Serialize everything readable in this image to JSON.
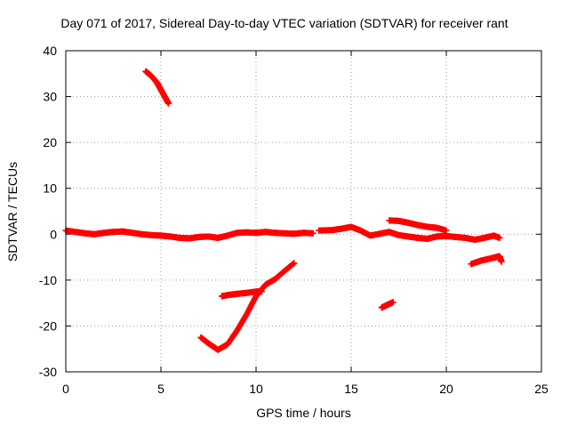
{
  "chart_data": {
    "type": "scatter",
    "title": "Day 071 of 2017, Sidereal Day-to-day VTEC variation (SDTVAR) for receiver rant",
    "xlabel": "GPS time / hours",
    "ylabel": "SDTVAR / TECUs",
    "xlim": [
      0,
      25
    ],
    "ylim": [
      -30,
      40
    ],
    "xticks": [
      0,
      5,
      10,
      15,
      20,
      25
    ],
    "yticks": [
      -30,
      -20,
      -10,
      0,
      10,
      20,
      30,
      40
    ],
    "grid": true,
    "marker": "+",
    "color": "#ff0000",
    "series": [
      {
        "name": "main-near-zero",
        "points": [
          [
            0,
            0.8
          ],
          [
            0.5,
            0.5
          ],
          [
            1,
            0.2
          ],
          [
            1.5,
            0
          ],
          [
            2,
            0.3
          ],
          [
            2.5,
            0.5
          ],
          [
            3,
            0.6
          ],
          [
            3.5,
            0.3
          ],
          [
            4,
            0
          ],
          [
            4.5,
            -0.2
          ],
          [
            5,
            -0.3
          ],
          [
            5.5,
            -0.5
          ],
          [
            6,
            -0.8
          ],
          [
            6.5,
            -0.9
          ],
          [
            7,
            -0.6
          ],
          [
            7.5,
            -0.5
          ],
          [
            8,
            -0.8
          ],
          [
            8.5,
            -0.3
          ],
          [
            9,
            0.3
          ],
          [
            9.5,
            0.4
          ],
          [
            10,
            0.3
          ],
          [
            10.5,
            0.5
          ],
          [
            11,
            0.3
          ],
          [
            11.5,
            0.2
          ],
          [
            12,
            0.1
          ],
          [
            12.5,
            0.3
          ],
          [
            13,
            0.2
          ]
        ]
      },
      {
        "name": "mid-segment",
        "points": [
          [
            13.3,
            0.8
          ],
          [
            14,
            0.9
          ],
          [
            14.5,
            1.2
          ],
          [
            15,
            1.6
          ],
          [
            15.5,
            0.8
          ],
          [
            16,
            -0.3
          ],
          [
            16.5,
            0.1
          ],
          [
            17,
            0.5
          ],
          [
            17.5,
            -0.2
          ],
          [
            18,
            -0.5
          ],
          [
            18.5,
            -0.8
          ],
          [
            19,
            -1.0
          ],
          [
            19.5,
            -0.5
          ],
          [
            20,
            -0.4
          ],
          [
            20.5,
            -0.6
          ],
          [
            21,
            -0.8
          ],
          [
            21.5,
            -1.2
          ],
          [
            22,
            -0.8
          ],
          [
            22.5,
            -0.3
          ],
          [
            22.8,
            -0.8
          ]
        ]
      },
      {
        "name": "upper-arc",
        "points": [
          [
            17,
            3
          ],
          [
            17.5,
            2.9
          ],
          [
            18,
            2.5
          ],
          [
            18.5,
            2.0
          ],
          [
            19,
            1.6
          ],
          [
            19.5,
            1.4
          ],
          [
            20,
            0.8
          ]
        ]
      },
      {
        "name": "descending-start",
        "points": [
          [
            4.2,
            35.5
          ],
          [
            4.5,
            34.5
          ],
          [
            4.8,
            33
          ],
          [
            5.0,
            31.5
          ],
          [
            5.2,
            30
          ],
          [
            5.4,
            28.5
          ]
        ]
      },
      {
        "name": "rising-track",
        "points": [
          [
            7.1,
            -22.5
          ],
          [
            7.5,
            -23.8
          ],
          [
            8,
            -25.2
          ],
          [
            8.5,
            -24
          ],
          [
            9,
            -21
          ],
          [
            9.5,
            -17.5
          ],
          [
            10,
            -13.5
          ],
          [
            10.5,
            -11
          ],
          [
            11,
            -9.8
          ],
          [
            11.5,
            -8
          ],
          [
            12,
            -6.3
          ]
        ]
      },
      {
        "name": "short-flat",
        "points": [
          [
            8.2,
            -13.5
          ],
          [
            8.6,
            -13.2
          ],
          [
            9,
            -13
          ],
          [
            9.5,
            -12.8
          ],
          [
            10,
            -12.5
          ],
          [
            10.3,
            -12.5
          ]
        ]
      },
      {
        "name": "small-blip",
        "points": [
          [
            16.6,
            -16
          ],
          [
            16.9,
            -15.4
          ],
          [
            17.2,
            -14.8
          ]
        ]
      },
      {
        "name": "late-track",
        "points": [
          [
            21.3,
            -6.5
          ],
          [
            21.8,
            -5.8
          ],
          [
            22.2,
            -5.4
          ],
          [
            22.6,
            -5.0
          ],
          [
            22.8,
            -4.8
          ],
          [
            22.9,
            -6
          ]
        ]
      }
    ]
  }
}
